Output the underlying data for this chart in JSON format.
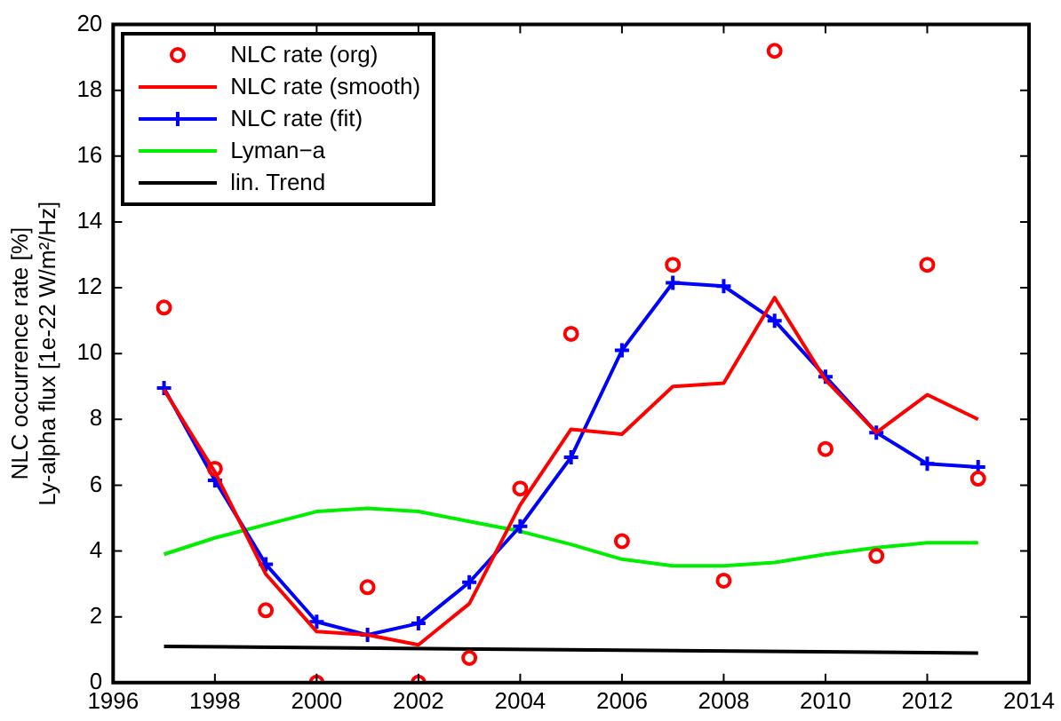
{
  "chart_data": {
    "type": "line",
    "ylabel": "NLC occurrence rate [%]\nLy-alpha flux [1e-22 W/m²/Hz]",
    "x": [
      1997,
      1998,
      1999,
      2000,
      2001,
      2002,
      2003,
      2004,
      2005,
      2006,
      2007,
      2008,
      2009,
      2010,
      2011,
      2012,
      2013
    ],
    "xlim": [
      1996,
      2014
    ],
    "xticks": [
      1996,
      1998,
      2000,
      2002,
      2004,
      2006,
      2008,
      2010,
      2012,
      2014
    ],
    "ylim": [
      0,
      20
    ],
    "yticks": [
      0,
      2,
      4,
      6,
      8,
      10,
      12,
      14,
      16,
      18,
      20
    ],
    "grid": false,
    "legend": "top left",
    "series": [
      {
        "name": "NLC rate (org)",
        "type": "scatter",
        "marker": "circle",
        "color": "#ff0000",
        "values": [
          11.4,
          6.5,
          2.2,
          0,
          2.9,
          0,
          0.75,
          5.9,
          10.6,
          4.3,
          12.7,
          3.1,
          19.2,
          7.1,
          3.85,
          12.7,
          6.2
        ]
      },
      {
        "name": "NLC rate (smooth)",
        "type": "line",
        "marker": "none",
        "color": "#ff0000",
        "values": [
          8.9,
          6.4,
          3.3,
          1.55,
          1.45,
          1.15,
          2.4,
          5.4,
          7.7,
          7.55,
          9.0,
          9.1,
          11.7,
          9.2,
          7.6,
          8.75,
          8.0
        ]
      },
      {
        "name": "NLC rate (fit)",
        "type": "line",
        "marker": "cross",
        "color": "#0000ff",
        "values": [
          8.95,
          6.15,
          3.6,
          1.85,
          1.45,
          1.8,
          3.05,
          4.75,
          6.85,
          10.1,
          12.15,
          12.05,
          11.0,
          9.3,
          7.6,
          6.65,
          6.55
        ]
      },
      {
        "name": "Lyman−a",
        "type": "line",
        "marker": "none",
        "color": "#00ee00",
        "values": [
          3.9,
          4.4,
          4.8,
          5.2,
          5.3,
          5.2,
          4.9,
          4.6,
          4.2,
          3.75,
          3.55,
          3.55,
          3.65,
          3.9,
          4.1,
          4.25,
          4.25
        ]
      },
      {
        "name": "lin. Trend",
        "type": "line",
        "marker": "none",
        "color": "#000000",
        "x": [
          1997,
          2013
        ],
        "values": [
          1.1,
          0.9
        ]
      }
    ]
  }
}
